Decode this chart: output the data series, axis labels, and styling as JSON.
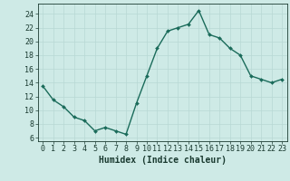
{
  "x": [
    0,
    1,
    2,
    3,
    4,
    5,
    6,
    7,
    8,
    9,
    10,
    11,
    12,
    13,
    14,
    15,
    16,
    17,
    18,
    19,
    20,
    21,
    22,
    23
  ],
  "y": [
    13.5,
    11.5,
    10.5,
    9.0,
    8.5,
    7.0,
    7.5,
    7.0,
    6.5,
    11.0,
    15.0,
    19.0,
    21.5,
    22.0,
    22.5,
    24.5,
    21.0,
    20.5,
    19.0,
    18.0,
    15.0,
    14.5,
    14.0,
    14.5
  ],
  "line_color": "#1a6b5a",
  "marker": "D",
  "marker_size": 2,
  "line_width": 1.0,
  "xlabel": "Humidex (Indice chaleur)",
  "xlabel_fontsize": 7,
  "ylabel_ticks": [
    6,
    8,
    10,
    12,
    14,
    16,
    18,
    20,
    22,
    24
  ],
  "xlim": [
    -0.5,
    23.5
  ],
  "ylim": [
    5.5,
    25.5
  ],
  "background_color": "#ceeae6",
  "grid_color": "#b8d8d4",
  "tick_color": "#1a3a30",
  "tick_fontsize": 6,
  "xtick_labels": [
    "0",
    "1",
    "2",
    "3",
    "4",
    "5",
    "6",
    "7",
    "8",
    "9",
    "10",
    "11",
    "12",
    "13",
    "14",
    "15",
    "16",
    "17",
    "18",
    "19",
    "20",
    "21",
    "22",
    "23"
  ]
}
